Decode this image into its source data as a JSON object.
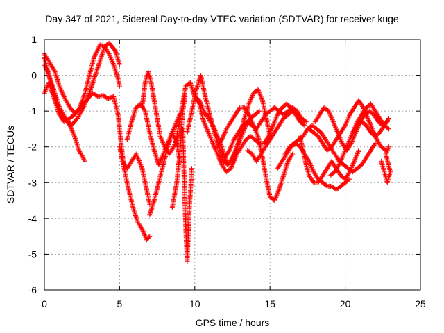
{
  "chart_data": {
    "type": "scatter",
    "title": "Day 347 of 2021, Sidereal Day-to-day VTEC variation (SDTVAR) for receiver kuge",
    "xlabel": "GPS time / hours",
    "ylabel": "SDTVAR / TECUs",
    "xlim": [
      0,
      25
    ],
    "ylim": [
      -6,
      1
    ],
    "xticks": [
      0,
      5,
      10,
      15,
      20,
      25
    ],
    "yticks": [
      -6,
      -5,
      -4,
      -3,
      -2,
      -1,
      0,
      1
    ],
    "grid": true,
    "marker": "plus",
    "marker_color": "#ff0000",
    "series": [
      {
        "x": [
          0,
          0.3,
          0.7,
          1.0,
          1.3,
          1.7,
          2.0,
          2.3,
          2.7,
          3.0,
          3.3,
          3.7,
          4.0,
          4.3,
          4.6,
          4.9,
          5.0
        ],
        "y": [
          0.6,
          0.4,
          0.1,
          -0.3,
          -0.6,
          -0.9,
          -1.05,
          -0.95,
          -0.5,
          0.0,
          0.5,
          0.85,
          0.8,
          0.6,
          0.3,
          -0.1,
          -0.3
        ]
      },
      {
        "x": [
          0,
          0.3,
          0.7,
          1.0,
          1.3,
          1.7,
          2.0,
          2.3,
          2.7
        ],
        "y": [
          0.3,
          0.0,
          -0.5,
          -0.9,
          -1.2,
          -1.4,
          -1.7,
          -2.1,
          -2.4
        ]
      },
      {
        "x": [
          0,
          0.3,
          0.6,
          1.0,
          1.4,
          1.8,
          2.2,
          2.6,
          3.0,
          3.3,
          3.7,
          4.0,
          4.3,
          4.7,
          5.0
        ],
        "y": [
          0.5,
          0.0,
          -0.5,
          -0.9,
          -1.2,
          -1.4,
          -1.2,
          -0.9,
          -0.5,
          -0.1,
          0.4,
          0.8,
          0.9,
          0.7,
          0.3
        ]
      },
      {
        "x": [
          0,
          0.3,
          0.7,
          1.0,
          1.3,
          1.7,
          2.0,
          2.4,
          2.8,
          3.2,
          3.6,
          3.9,
          4.2,
          4.6
        ],
        "y": [
          -0.5,
          -0.2,
          -0.7,
          -1.1,
          -1.3,
          -1.2,
          -1.1,
          -0.9,
          -0.7,
          -0.5,
          -0.6,
          -0.55,
          -0.65,
          -0.6
        ]
      },
      {
        "x": [
          4.6,
          4.9,
          5.1,
          5.3,
          5.6,
          5.9,
          6.2,
          6.5,
          6.8,
          7.0
        ],
        "y": [
          -0.6,
          -1.1,
          -1.9,
          -2.6,
          -3.2,
          -3.7,
          -4.1,
          -4.3,
          -4.6,
          -4.5
        ]
      },
      {
        "x": [
          5.0,
          5.2,
          5.5,
          5.8,
          6.1,
          6.5,
          6.8,
          7.0
        ],
        "y": [
          -2.0,
          -2.4,
          -2.6,
          -2.4,
          -2.2,
          -2.6,
          -3.2,
          -3.6
        ]
      },
      {
        "x": [
          5.5,
          5.8,
          6.1,
          6.4,
          6.7,
          7.0,
          7.3,
          7.6,
          7.9,
          8.2,
          8.5,
          8.8,
          9.0
        ],
        "y": [
          -1.8,
          -1.3,
          -0.9,
          -0.8,
          -1.0,
          -1.6,
          -2.1,
          -2.5,
          -2.2,
          -1.9,
          -1.6,
          -1.3,
          -1.1
        ]
      },
      {
        "x": [
          6.5,
          6.7,
          6.9,
          7.1,
          7.3,
          7.5,
          7.7,
          8.0,
          8.3,
          8.6,
          8.9
        ],
        "y": [
          -0.9,
          -0.2,
          0.1,
          -0.2,
          -0.7,
          -1.2,
          -1.7,
          -2.0,
          -2.2,
          -2.0,
          -1.7
        ]
      },
      {
        "x": [
          7.0,
          7.3,
          7.6,
          7.9,
          8.2,
          8.5,
          8.8,
          9.0
        ],
        "y": [
          -3.9,
          -3.5,
          -3.0,
          -2.5,
          -2.0,
          -1.6,
          -1.9,
          -2.4
        ]
      },
      {
        "x": [
          8.5,
          8.8,
          9.0,
          9.2,
          9.35
        ],
        "y": [
          -3.7,
          -3.0,
          -2.2,
          -1.0,
          -0.6
        ]
      },
      {
        "x": [
          9.2,
          9.3,
          9.4,
          9.5,
          9.6,
          9.8
        ],
        "y": [
          -1.5,
          -3.0,
          -4.3,
          -5.2,
          -4.0,
          -2.6
        ]
      },
      {
        "x": [
          8.8,
          9.1,
          9.4,
          9.7,
          10.0,
          10.3,
          10.6,
          10.9,
          11.2,
          11.5,
          11.8,
          12.0,
          12.2
        ],
        "y": [
          -1.7,
          -1.0,
          -0.3,
          -0.2,
          -0.6,
          -0.7,
          -1.0,
          -1.2,
          -1.4,
          -1.7,
          -2.0,
          -2.3,
          -2.5
        ]
      },
      {
        "x": [
          9.5,
          9.8,
          10.1,
          10.4,
          10.7,
          11.0,
          11.3,
          11.6,
          11.9,
          12.2,
          12.5,
          12.8,
          13.1,
          13.4,
          13.7,
          14.0,
          14.3
        ],
        "y": [
          -1.6,
          -1.0,
          -0.4,
          0.0,
          -0.6,
          -1.1,
          -1.6,
          -2.0,
          -2.4,
          -2.5,
          -2.3,
          -2.0,
          -1.7,
          -1.4,
          -1.2,
          -1.1,
          -1.0
        ]
      },
      {
        "x": [
          10.0,
          10.3,
          10.6,
          10.9,
          11.2,
          11.5,
          11.8,
          12.1,
          12.4,
          12.7,
          13.0,
          13.3,
          13.6,
          13.9,
          14.2,
          14.5,
          14.8,
          15.0
        ],
        "y": [
          -0.6,
          -0.8,
          -1.3,
          -1.6,
          -1.9,
          -2.2,
          -2.5,
          -2.7,
          -2.6,
          -2.2,
          -1.7,
          -1.2,
          -0.8,
          -0.5,
          -0.4,
          -0.7,
          -1.3,
          -1.7
        ]
      },
      {
        "x": [
          11.5,
          11.8,
          12.1,
          12.4,
          12.7,
          13.0,
          13.3,
          13.6,
          13.9,
          14.2,
          14.5,
          14.8,
          15.0,
          15.3,
          15.6,
          15.9,
          16.2,
          16.5
        ],
        "y": [
          -2.0,
          -1.8,
          -1.5,
          -1.3,
          -1.1,
          -0.9,
          -0.9,
          -1.1,
          -1.4,
          -1.7,
          -2.3,
          -3.0,
          -3.4,
          -3.5,
          -3.2,
          -2.8,
          -2.4,
          -2.2
        ]
      },
      {
        "x": [
          12.0,
          12.3,
          12.6,
          12.9,
          13.2,
          13.5,
          13.8,
          14.1,
          14.4,
          14.7,
          15.0,
          15.3,
          15.6,
          15.9,
          16.2,
          16.5,
          16.8,
          17.1,
          17.4
        ],
        "y": [
          -2.3,
          -2.1,
          -1.8,
          -1.6,
          -1.4,
          -1.3,
          -1.4,
          -1.5,
          -1.3,
          -1.1,
          -1.0,
          -0.9,
          -1.0,
          -1.1,
          -1.0,
          -0.9,
          -1.0,
          -1.2,
          -1.3
        ]
      },
      {
        "x": [
          12.5,
          12.8,
          13.1,
          13.4,
          13.7,
          14.0,
          14.3,
          14.6,
          14.9,
          15.2,
          15.5,
          15.8,
          16.1,
          16.4,
          16.7,
          17.0,
          17.3
        ],
        "y": [
          -2.5,
          -2.2,
          -2.0,
          -1.8,
          -1.7,
          -1.8,
          -1.9,
          -1.9,
          -1.7,
          -1.4,
          -1.1,
          -0.9,
          -0.8,
          -0.9,
          -1.1,
          -1.3,
          -1.4
        ]
      },
      {
        "x": [
          13.5,
          13.8,
          14.1,
          14.4,
          14.7,
          15.0,
          15.3,
          15.6,
          15.9,
          16.2,
          16.5,
          16.8,
          17.1
        ],
        "y": [
          -2.1,
          -2.2,
          -2.4,
          -2.2,
          -2.0,
          -1.8,
          -1.6,
          -1.4,
          -1.2,
          -1.1,
          -1.0,
          -1.1,
          -1.3
        ]
      },
      {
        "x": [
          15.5,
          15.8,
          16.1,
          16.4,
          16.7,
          17.0,
          17.3,
          17.6,
          17.9,
          18.2,
          18.5,
          18.8,
          19.1,
          19.4,
          19.7,
          20.0,
          20.3
        ],
        "y": [
          -2.6,
          -2.4,
          -2.2,
          -2.0,
          -1.9,
          -2.0,
          -2.2,
          -2.4,
          -2.7,
          -2.9,
          -3.0,
          -3.1,
          -3.1,
          -3.2,
          -3.1,
          -3.0,
          -2.9
        ]
      },
      {
        "x": [
          16.0,
          16.3,
          16.6,
          16.9,
          17.2,
          17.5,
          17.8,
          18.1,
          18.4,
          18.7,
          19.0,
          19.3,
          19.6,
          19.9,
          20.2,
          20.5,
          20.8,
          21.1,
          21.4,
          21.7,
          22.0
        ],
        "y": [
          -2.2,
          -2.0,
          -1.9,
          -1.8,
          -1.7,
          -1.5,
          -1.4,
          -1.5,
          -1.6,
          -1.8,
          -2.0,
          -2.2,
          -2.4,
          -2.5,
          -2.6,
          -2.7,
          -2.6,
          -2.5,
          -2.3,
          -2.1,
          -1.9
        ]
      },
      {
        "x": [
          17.0,
          17.2,
          17.4,
          17.6,
          17.9,
          18.2,
          18.5,
          18.8,
          19.1,
          19.4,
          19.7,
          20.0,
          20.3,
          20.6,
          20.9
        ],
        "y": [
          -1.7,
          -2.1,
          -2.5,
          -2.8,
          -3.0,
          -3.0,
          -2.8,
          -2.6,
          -2.4,
          -2.6,
          -2.8,
          -2.9,
          -2.7,
          -2.4,
          -2.1
        ]
      },
      {
        "x": [
          17.6,
          17.9,
          18.2,
          18.5,
          18.8,
          19.1,
          19.4,
          19.7,
          20.0,
          20.3,
          20.6,
          20.9,
          21.2,
          21.5,
          21.8,
          22.1,
          22.4,
          22.7
        ],
        "y": [
          -1.5,
          -1.6,
          -1.7,
          -1.9,
          -2.1,
          -2.0,
          -1.8,
          -1.6,
          -1.4,
          -1.1,
          -0.9,
          -0.7,
          -0.9,
          -1.2,
          -1.5,
          -1.8,
          -2.0,
          -2.1
        ]
      },
      {
        "x": [
          18.0,
          18.3,
          18.6,
          18.9,
          19.2,
          19.5,
          19.8,
          20.1,
          20.4,
          20.7,
          21.0,
          21.3,
          21.6,
          21.9,
          22.2,
          22.5,
          22.8
        ],
        "y": [
          -1.3,
          -1.1,
          -0.9,
          -1.0,
          -1.3,
          -1.6,
          -1.9,
          -2.1,
          -1.9,
          -1.6,
          -1.3,
          -1.1,
          -1.0,
          -1.1,
          -1.3,
          -1.4,
          -1.3
        ]
      },
      {
        "x": [
          19.0,
          19.3,
          19.6,
          19.9,
          20.2,
          20.5,
          20.8,
          21.1,
          21.4,
          21.7,
          22.0,
          22.3,
          22.6,
          22.9
        ],
        "y": [
          -2.8,
          -2.7,
          -2.5,
          -2.2,
          -1.9,
          -1.6,
          -1.4,
          -1.3,
          -1.4,
          -1.6,
          -1.7,
          -1.6,
          -1.4,
          -1.2
        ]
      },
      {
        "x": [
          20.5,
          20.8,
          21.1,
          21.4,
          21.7,
          22.0,
          22.3,
          22.6,
          22.9
        ],
        "y": [
          -1.6,
          -1.3,
          -1.1,
          -0.9,
          -0.8,
          -1.0,
          -1.2,
          -1.4,
          -1.5
        ]
      },
      {
        "x": [
          22.4,
          22.6,
          22.8,
          23.0,
          22.7,
          22.9
        ],
        "y": [
          -2.4,
          -2.7,
          -3.0,
          -2.7,
          -2.2,
          -2.0
        ]
      }
    ]
  }
}
